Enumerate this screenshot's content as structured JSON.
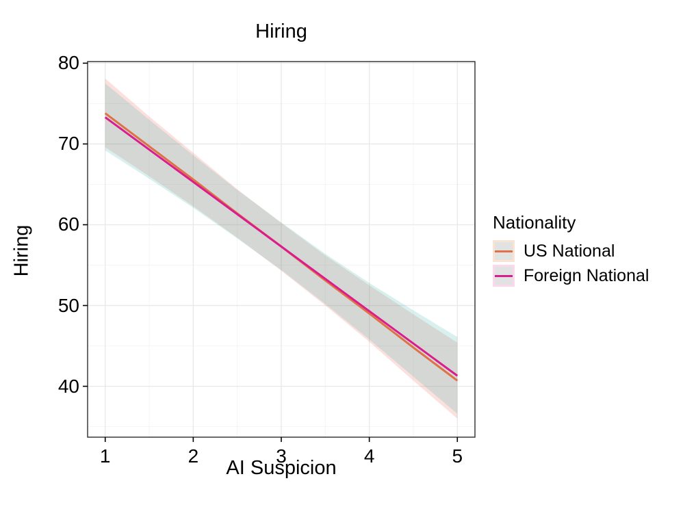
{
  "chart_data": {
    "type": "line",
    "title": "Hiring",
    "xlabel": "AI Suspicion",
    "ylabel": "Hiring",
    "xlim": [
      0.8,
      5.2
    ],
    "ylim": [
      33.7,
      80.2
    ],
    "x_ticks": [
      1,
      2,
      3,
      4,
      5
    ],
    "y_ticks": [
      40,
      50,
      60,
      70,
      80
    ],
    "x_minor_ticks": [
      1.5,
      2.5,
      3.5,
      4.5
    ],
    "y_minor_ticks": [
      35,
      45,
      55,
      65,
      75
    ],
    "grid": "on",
    "legend_position": "right",
    "x": [
      1,
      1.5,
      2,
      2.5,
      3,
      3.5,
      4,
      4.5,
      5
    ],
    "series": [
      {
        "name": "US National",
        "line_color": "#DF7146",
        "fill_color": "#EB645A",
        "fill_alpha": 0.2,
        "values": [
          73.8,
          69.7,
          65.6,
          61.4,
          57.3,
          53.1,
          49.0,
          44.8,
          40.7
        ],
        "ci_upper": [
          78.1,
          73.4,
          68.9,
          64.4,
          60.2,
          56.2,
          52.5,
          48.9,
          45.4
        ],
        "ci_lower": [
          69.6,
          66.0,
          62.3,
          58.4,
          54.3,
          50.0,
          45.5,
          40.7,
          36.0
        ]
      },
      {
        "name": "Foreign National",
        "line_color": "#DB1C8C",
        "fill_color": "#3CB4AA",
        "fill_alpha": 0.2,
        "values": [
          73.3,
          69.3,
          65.3,
          61.3,
          57.3,
          53.3,
          49.3,
          45.3,
          41.3
        ],
        "ci_upper": [
          77.5,
          73.0,
          68.6,
          64.3,
          60.3,
          56.4,
          52.8,
          49.4,
          46.1
        ],
        "ci_lower": [
          69.2,
          65.7,
          62.1,
          58.3,
          54.4,
          50.2,
          45.8,
          41.2,
          36.6
        ]
      }
    ]
  },
  "legend": {
    "title": "Nationality",
    "items": [
      {
        "label": "US National",
        "key_border": "#F9E3D3",
        "key_fill": "#E2E2E2",
        "line_color": "#DF7146"
      },
      {
        "label": "Foreign National",
        "key_border": "#FBD9EC",
        "key_fill": "#E2E2E2",
        "line_color": "#DB1C8C"
      }
    ]
  },
  "colors": {
    "panel_border": "#2B2B2B",
    "grid_major": "#E8E8E8",
    "grid_minor": "#F4F4F4",
    "tick_mark": "#000000",
    "background": "#FFFFFF"
  }
}
